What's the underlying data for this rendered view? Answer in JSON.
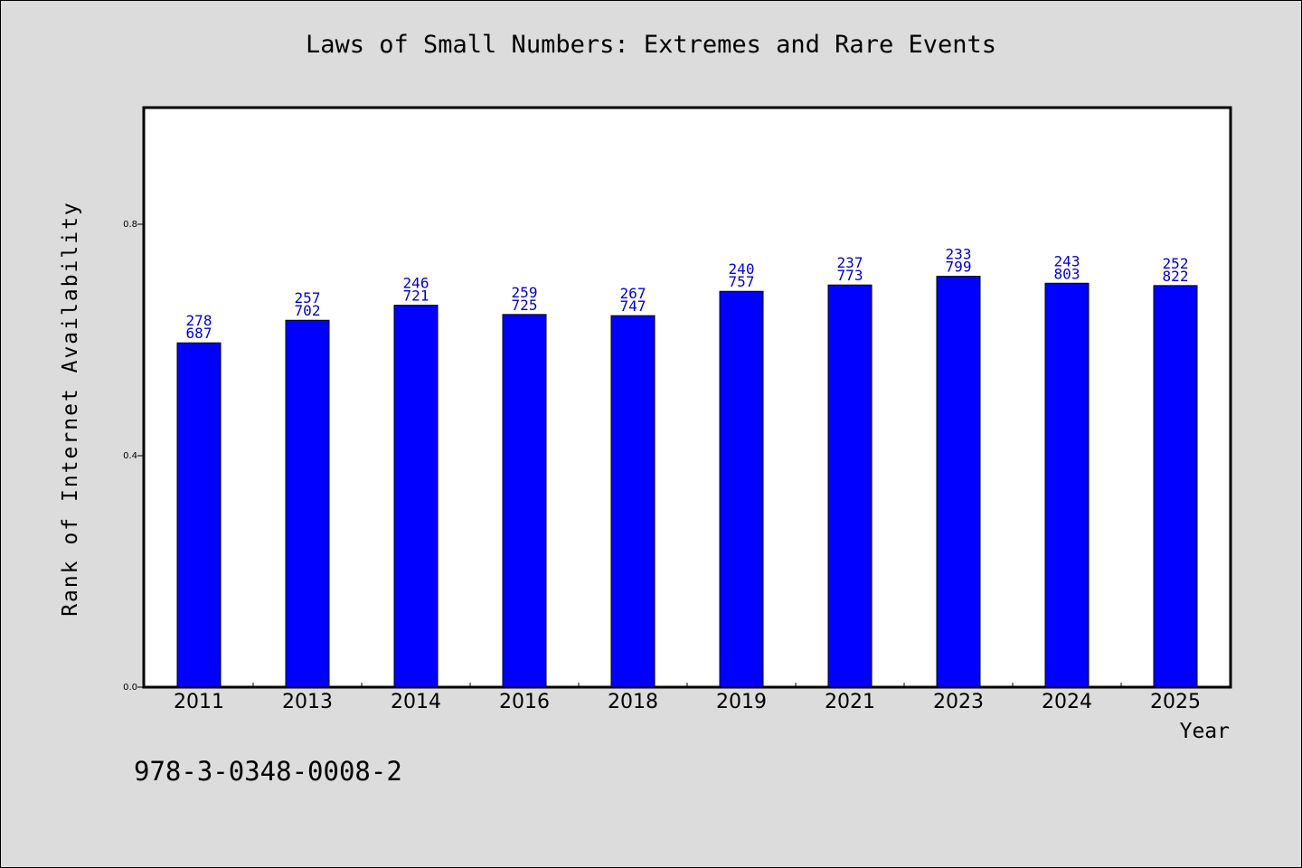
{
  "chart_data": {
    "type": "bar",
    "title": "Laws of Small Numbers: Extremes and Rare Events",
    "xlabel": "Year",
    "ylabel": "Rank of Internet Availability",
    "categories": [
      "2011",
      "2013",
      "2014",
      "2016",
      "2018",
      "2019",
      "2021",
      "2023",
      "2024",
      "2025"
    ],
    "values": [
      0.595,
      0.634,
      0.66,
      0.644,
      0.642,
      0.684,
      0.695,
      0.71,
      0.698,
      0.694
    ],
    "label_top": [
      "278",
      "257",
      "246",
      "259",
      "267",
      "240",
      "237",
      "233",
      "243",
      "252"
    ],
    "label_bottom": [
      "687",
      "702",
      "721",
      "725",
      "747",
      "757",
      "773",
      "799",
      "803",
      "822"
    ],
    "ylim": [
      0,
      1.0
    ],
    "yticks": [
      0.0,
      0.4,
      0.8
    ],
    "ytick_labels": [
      "0.0",
      "0.4",
      "0.8"
    ],
    "grid": false,
    "legend": "none",
    "colors": {
      "bar": "#0000ff",
      "label": "#0000cc",
      "plot_bg": "#ffffff",
      "page_bg": "#dcdcdc"
    }
  },
  "footer": {
    "isbn": "978-3-0348-0008-2"
  }
}
